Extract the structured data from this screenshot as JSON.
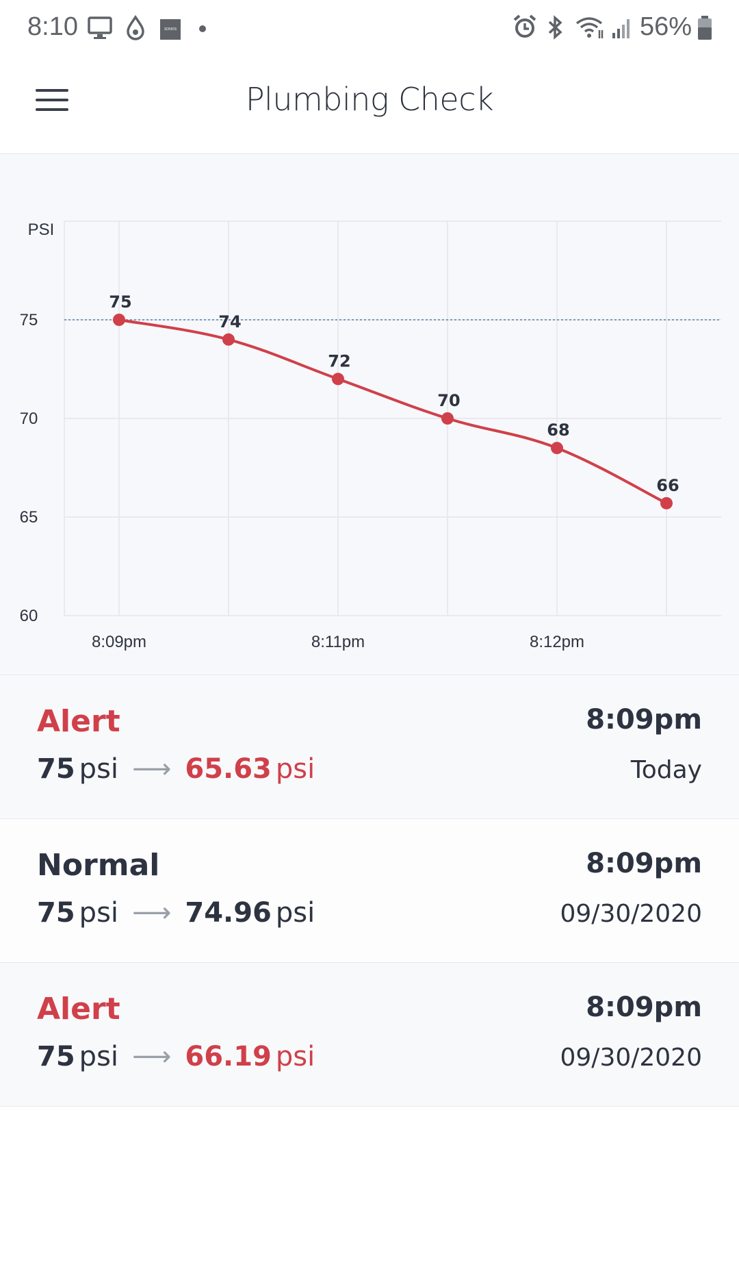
{
  "status_bar": {
    "time": "8:10",
    "battery": "56%",
    "icons": [
      "monitor-icon",
      "drop-icon",
      "sonos-icon",
      "dot-icon",
      "alarm-icon",
      "bluetooth-icon",
      "wifi-icon",
      "signal-icon",
      "battery-icon"
    ],
    "sonos_label": "SONOS"
  },
  "header": {
    "menu_icon": "hamburger-menu-icon",
    "title": "Plumbing Check"
  },
  "chart_data": {
    "type": "line",
    "ylabel": "PSI",
    "ylim": [
      60,
      80
    ],
    "yticks": [
      "75",
      "70",
      "65",
      "60"
    ],
    "x": [
      "8:09pm",
      "",
      "8:11pm",
      "",
      "8:12pm",
      ""
    ],
    "xtick_labels": [
      "8:09pm",
      "8:11pm",
      "8:12pm"
    ],
    "series": [
      {
        "values": [
          75,
          74,
          72,
          70,
          68.5,
          65.7
        ],
        "labels": [
          "75",
          "74",
          "72",
          "70",
          "68",
          "66"
        ],
        "color": "#d0404a"
      }
    ],
    "reference_line": 75,
    "grid": true
  },
  "events": [
    {
      "status": "Alert",
      "status_color": "#d0404a",
      "start": "75",
      "end": "65.63",
      "unit": "psi",
      "end_color": "#d0404a",
      "time": "8:09pm",
      "date": "Today"
    },
    {
      "status": "Normal",
      "status_color": "#2d3340",
      "start": "75",
      "end": "74.96",
      "unit": "psi",
      "end_color": "#2d3340",
      "time": "8:09pm",
      "date": "09/30/2020"
    },
    {
      "status": "Alert",
      "status_color": "#d0404a",
      "start": "75",
      "end": "66.19",
      "unit": "psi",
      "end_color": "#d0404a",
      "time": "8:09pm",
      "date": "09/30/2020"
    }
  ],
  "arrow_glyph": "⟶"
}
